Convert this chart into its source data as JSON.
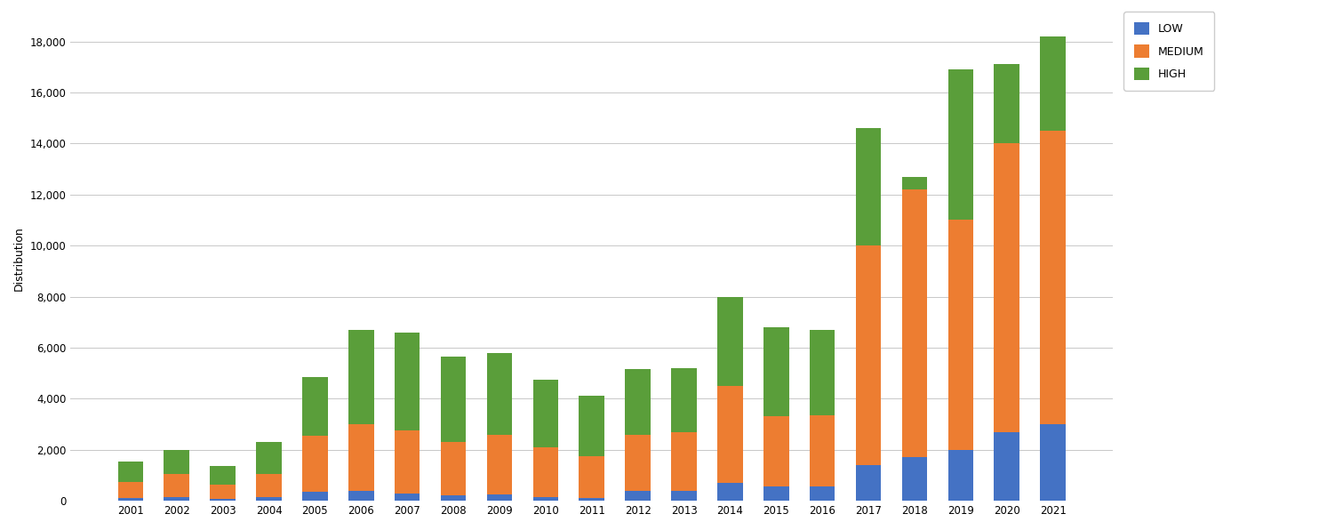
{
  "years": [
    2001,
    2002,
    2003,
    2004,
    2005,
    2006,
    2007,
    2008,
    2009,
    2010,
    2011,
    2012,
    2013,
    2014,
    2015,
    2016,
    2017,
    2018,
    2019,
    2020,
    2021
  ],
  "low": [
    100,
    150,
    80,
    150,
    350,
    400,
    300,
    200,
    250,
    150,
    100,
    400,
    400,
    700,
    550,
    550,
    1400,
    1700,
    2000,
    2700,
    3000
  ],
  "medium": [
    650,
    900,
    550,
    900,
    2200,
    2600,
    2450,
    2100,
    2350,
    1950,
    1650,
    2200,
    2300,
    3800,
    2750,
    2800,
    8600,
    10500,
    9000,
    11300,
    11500
  ],
  "high": [
    800,
    950,
    750,
    1250,
    2300,
    3700,
    3850,
    3350,
    3200,
    2650,
    2350,
    2550,
    2500,
    3500,
    3500,
    3350,
    4600,
    500,
    5900,
    3100,
    3700
  ],
  "low_color": "#4472c4",
  "medium_color": "#ed7d31",
  "high_color": "#5a9e3a",
  "ylabel": "Distribution",
  "ylim": [
    0,
    19000
  ],
  "yticks": [
    0,
    2000,
    4000,
    6000,
    8000,
    10000,
    12000,
    14000,
    16000,
    18000
  ],
  "legend_labels": [
    "LOW",
    "MEDIUM",
    "HIGH"
  ],
  "background_color": "#ffffff",
  "grid_color": "#c8c8c8",
  "bar_width": 0.55
}
